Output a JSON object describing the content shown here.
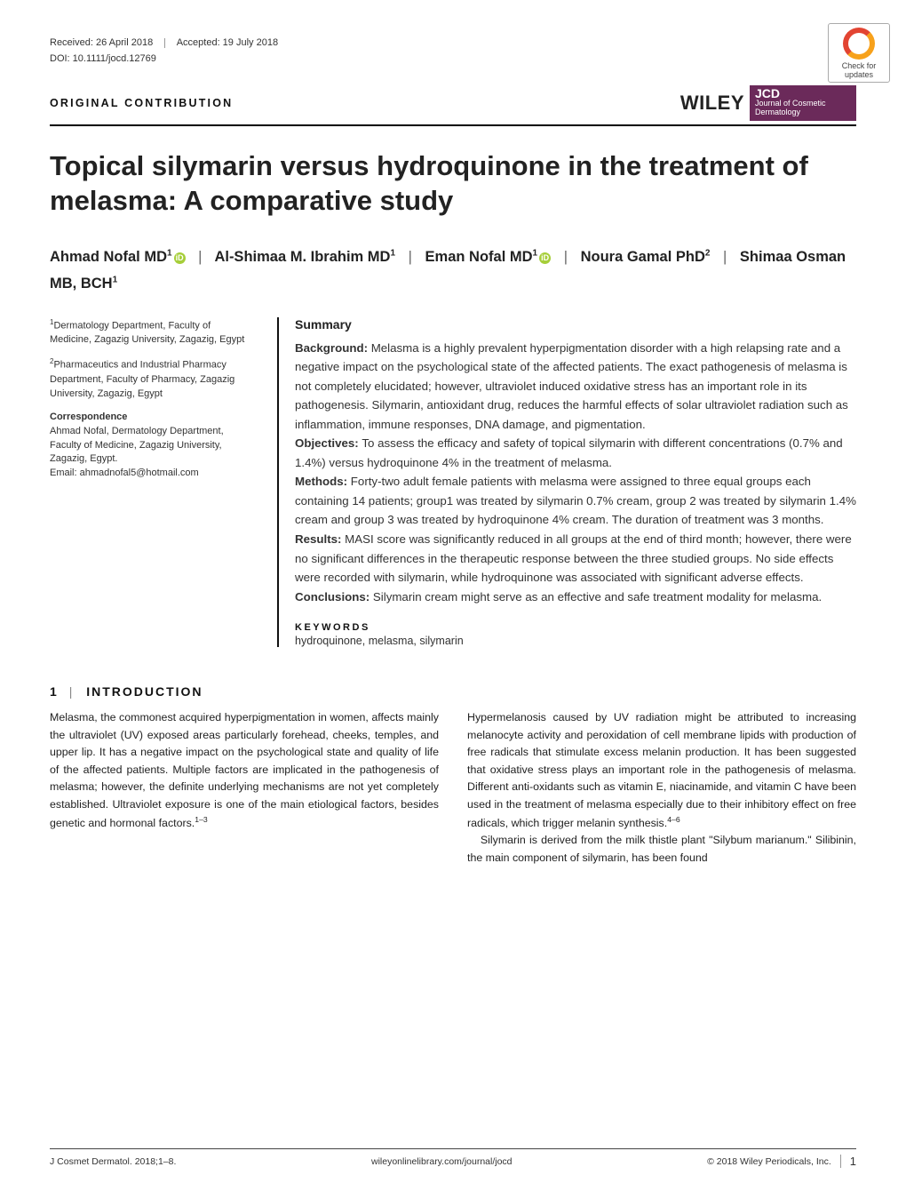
{
  "meta": {
    "received": "Received: 26 April 2018",
    "accepted": "Accepted: 19 July 2018",
    "doi": "DOI: 10.1111/jocd.12769",
    "contribution_label": "ORIGINAL CONTRIBUTION",
    "wiley": "WILEY",
    "jcd_label": "JCD",
    "jcd_sub": "Journal of Cosmetic Dermatology",
    "check_updates": "Check for updates"
  },
  "title": "Topical silymarin versus hydroquinone in the treatment of melasma: A comparative study",
  "authors": [
    {
      "name": "Ahmad Nofal MD",
      "sup": "1",
      "orcid": true
    },
    {
      "name": "Al-Shimaa M. Ibrahim MD",
      "sup": "1",
      "orcid": false
    },
    {
      "name": "Eman Nofal MD",
      "sup": "1",
      "orcid": true
    },
    {
      "name": "Noura Gamal PhD",
      "sup": "2",
      "orcid": false
    },
    {
      "name": "Shimaa Osman MB, BCH",
      "sup": "1",
      "orcid": false
    }
  ],
  "author_sep": "|",
  "affiliations": {
    "a1": "Dermatology Department, Faculty of Medicine, Zagazig University, Zagazig, Egypt",
    "a2": "Pharmaceutics and Industrial Pharmacy Department, Faculty of Pharmacy, Zagazig University, Zagazig, Egypt",
    "corr_head": "Correspondence",
    "corr_body": "Ahmad Nofal, Dermatology Department, Faculty of Medicine, Zagazig University, Zagazig, Egypt.",
    "corr_email": "Email: ahmadnofal5@hotmail.com"
  },
  "summary": {
    "heading": "Summary",
    "background_label": "Background: ",
    "background": "Melasma is a highly prevalent hyperpigmentation disorder with a high relapsing rate and a negative impact on the psychological state of the affected patients. The exact pathogenesis of melasma is not completely elucidated; however, ultraviolet induced oxidative stress has an important role in its pathogenesis. Silymarin, antioxidant drug, reduces the harmful effects of solar ultraviolet radiation such as inflammation, immune responses, DNA damage, and pigmentation.",
    "objectives_label": "Objectives: ",
    "objectives": "To assess the efficacy and safety of topical silymarin with different concentrations (0.7% and 1.4%) versus hydroquinone 4% in the treatment of melasma.",
    "methods_label": "Methods: ",
    "methods": "Forty-two adult female patients with melasma were assigned to three equal groups each containing 14 patients; group1 was treated by silymarin 0.7% cream, group 2 was treated by silymarin 1.4% cream and group 3 was treated by hydroquinone 4% cream. The duration of treatment was 3 months.",
    "results_label": "Results: ",
    "results": "MASI score was significantly reduced in all groups at the end of third month; however, there were no significant differences in the therapeutic response between the three studied groups. No side effects were recorded with silymarin, while hydroquinone was associated with significant adverse effects.",
    "conclusions_label": "Conclusions: ",
    "conclusions": "Silymarin cream might serve as an effective and safe treatment modality for melasma.",
    "kw_head": "KEYWORDS",
    "keywords": "hydroquinone, melasma, silymarin"
  },
  "section": {
    "num": "1",
    "pipe": "|",
    "title": "INTRODUCTION"
  },
  "body": {
    "p1": "Melasma, the commonest acquired hyperpigmentation in women, affects mainly the ultraviolet (UV) exposed areas particularly forehead, cheeks, temples, and upper lip. It has a negative impact on the psychological state and quality of life of the affected patients. Multiple factors are implicated in the pathogenesis of melasma; however, the definite underlying mechanisms are not yet completely established. Ultraviolet exposure is one of the main etiological factors, besides genetic and hormonal factors.",
    "p1_ref": "1–3",
    "p2": "Hypermelanosis caused by UV radiation might be attributed to increasing melanocyte activity and peroxidation of cell membrane lipids with production of free radicals that stimulate excess melanin production. It has been suggested that oxidative stress plays an important role in the pathogenesis of melasma. Different anti-oxidants such as vitamin E, niacinamide, and vitamin C have been used in the treatment of melasma especially due to their inhibitory effect on free radicals, which trigger melanin synthesis.",
    "p2_ref": "4–6",
    "p3": "Silymarin is derived from the milk thistle plant \"Silybum marianum.\" Silibinin, the main component of silymarin, has been found"
  },
  "footer": {
    "left": "J Cosmet Dermatol. 2018;1–8.",
    "center": "wileyonlinelibrary.com/journal/jocd",
    "right": "© 2018 Wiley Periodicals, Inc.",
    "page": "1"
  },
  "style": {
    "brand_badge_bg": "#6b2a5a",
    "orcid_green": "#a6ce39",
    "donut_red": "#e24432",
    "donut_orange": "#f7a11b"
  }
}
